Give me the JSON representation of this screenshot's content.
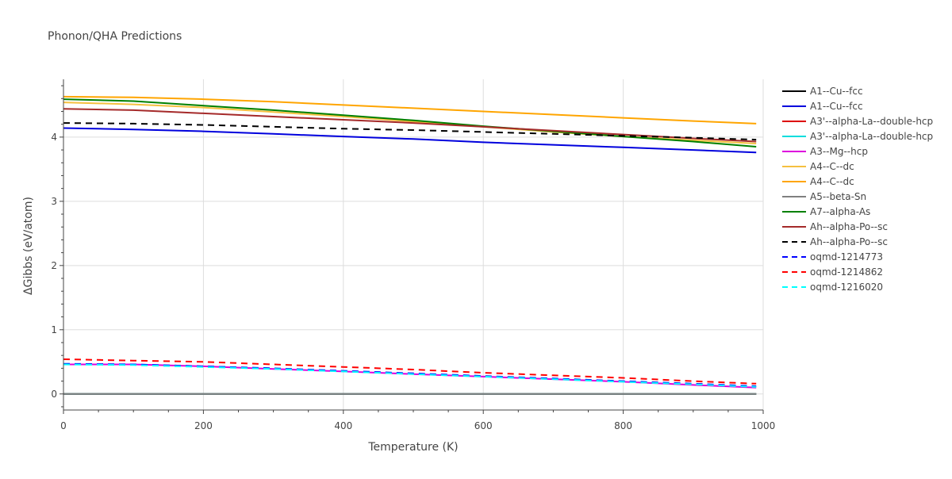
{
  "chart_data": {
    "type": "line",
    "title": "Phonon/QHA Predictions",
    "xlabel": "Temperature (K)",
    "ylabel": "ΔGibbs (eV/atom)",
    "xlim": [
      0,
      1000
    ],
    "ylim": [
      -0.25,
      4.9
    ],
    "x_ticks": [
      0,
      200,
      400,
      600,
      800,
      1000
    ],
    "x_tick_labels": [
      "0",
      "200",
      "400",
      "600",
      "800",
      "1000"
    ],
    "y_ticks": [
      0,
      1,
      2,
      3,
      4
    ],
    "y_tick_labels": [
      "0",
      "1",
      "2",
      "3",
      "4"
    ],
    "x_minor_step": 50,
    "y_minor_step": 0.2,
    "grid": true,
    "legend_position": "right",
    "x": [
      0,
      100,
      200,
      300,
      400,
      500,
      600,
      700,
      800,
      900,
      990
    ],
    "series": [
      {
        "name": "A1--Cu--fcc",
        "color": "#000000",
        "dash": "solid",
        "values": [
          0,
          0,
          0,
          0,
          0,
          0,
          0,
          0,
          0,
          0,
          0
        ]
      },
      {
        "name": "A1--Cu--fcc",
        "color": "#0000dd",
        "dash": "solid",
        "values": [
          4.14,
          4.12,
          4.09,
          4.05,
          4.01,
          3.97,
          3.92,
          3.88,
          3.84,
          3.8,
          3.76
        ]
      },
      {
        "name": "A3'--alpha-La--double-hcp",
        "color": "#dd0000",
        "dash": "solid",
        "values": [
          0,
          0,
          0,
          0,
          0,
          0,
          0,
          0,
          0,
          0,
          0
        ]
      },
      {
        "name": "A3'--alpha-La--double-hcp",
        "color": "#00dddd",
        "dash": "solid",
        "values": [
          0,
          0,
          0,
          0,
          0,
          0,
          0,
          0,
          0,
          0,
          0
        ]
      },
      {
        "name": "A3--Mg--hcp",
        "color": "#dd00dd",
        "dash": "solid",
        "values": [
          0.46,
          0.46,
          0.43,
          0.39,
          0.35,
          0.31,
          0.27,
          0.23,
          0.19,
          0.14,
          0.1
        ]
      },
      {
        "name": "A4--C--dc",
        "color": "#f5c040",
        "dash": "solid",
        "values": [
          4.54,
          4.51,
          4.46,
          4.39,
          4.32,
          4.24,
          4.16,
          4.08,
          4.01,
          3.95,
          3.9
        ]
      },
      {
        "name": "A4--C--dc",
        "color": "#ffa500",
        "dash": "solid",
        "values": [
          4.63,
          4.62,
          4.59,
          4.55,
          4.5,
          4.45,
          4.4,
          4.35,
          4.3,
          4.25,
          4.21
        ]
      },
      {
        "name": "A5--beta-Sn",
        "color": "#808080",
        "dash": "solid",
        "values": [
          0,
          0,
          0,
          0,
          0,
          0,
          0,
          0,
          0,
          0,
          0
        ]
      },
      {
        "name": "A7--alpha-As",
        "color": "#008000",
        "dash": "solid",
        "values": [
          4.59,
          4.56,
          4.49,
          4.42,
          4.34,
          4.26,
          4.17,
          4.09,
          4.01,
          3.93,
          3.85
        ]
      },
      {
        "name": "Ah--alpha-Po--sc",
        "color": "#a52a2a",
        "dash": "solid",
        "values": [
          4.44,
          4.42,
          4.37,
          4.32,
          4.27,
          4.22,
          4.16,
          4.1,
          4.04,
          3.98,
          3.93
        ]
      },
      {
        "name": "Ah--alpha-Po--sc",
        "color": "#000000",
        "dash": "dash",
        "values": [
          4.22,
          4.21,
          4.19,
          4.16,
          4.13,
          4.11,
          4.08,
          4.05,
          4.02,
          3.99,
          3.96
        ]
      },
      {
        "name": "oqmd-1214773",
        "color": "#0000ff",
        "dash": "dash",
        "values": [
          0.47,
          0.46,
          0.43,
          0.4,
          0.36,
          0.32,
          0.28,
          0.24,
          0.2,
          0.16,
          0.12
        ]
      },
      {
        "name": "oqmd-1214862",
        "color": "#ff0000",
        "dash": "dash",
        "values": [
          0.54,
          0.52,
          0.5,
          0.46,
          0.42,
          0.38,
          0.33,
          0.29,
          0.25,
          0.2,
          0.16
        ]
      },
      {
        "name": "oqmd-1216020",
        "color": "#00ffff",
        "dash": "dash",
        "values": [
          0.46,
          0.45,
          0.42,
          0.39,
          0.35,
          0.31,
          0.27,
          0.23,
          0.19,
          0.15,
          0.11
        ]
      }
    ]
  }
}
